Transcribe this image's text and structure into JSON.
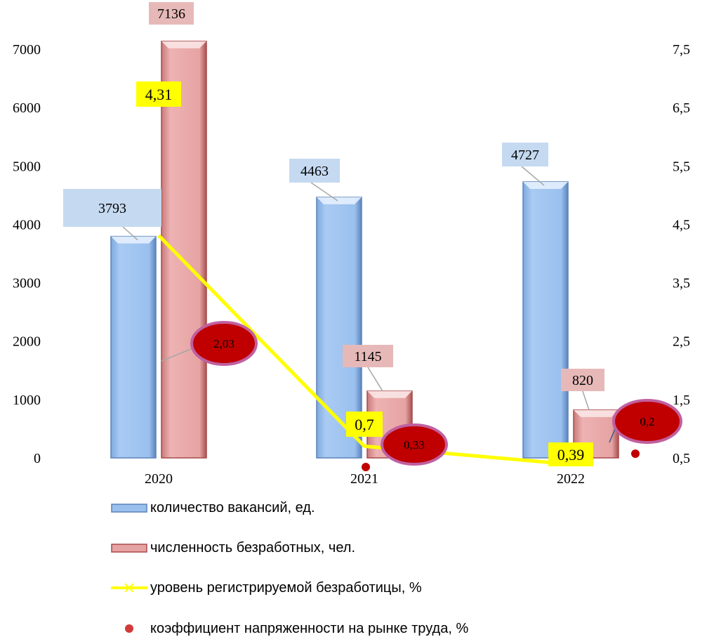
{
  "chart_data": {
    "type": "bar",
    "categories": [
      "2020",
      "2021",
      "2022"
    ],
    "y_left": {
      "ticks": [
        "0",
        "1000",
        "2000",
        "3000",
        "4000",
        "5000",
        "6000",
        "7000"
      ],
      "lim": [
        0,
        7000
      ]
    },
    "y_right": {
      "ticks": [
        "0,5",
        "1,5",
        "2,5",
        "3,5",
        "4,5",
        "5,5",
        "6,5",
        "7,5"
      ],
      "lim": [
        0.5,
        7.5
      ]
    },
    "series": [
      {
        "name": "количество вакансий, ед.",
        "kind": "bar",
        "axis": "left",
        "color": "#9ac0ee",
        "values": [
          3793,
          4463,
          4727
        ],
        "labels": [
          "3793",
          "4463",
          "4727"
        ]
      },
      {
        "name": "численность безработных, чел.",
        "kind": "bar",
        "axis": "left",
        "color": "#e6a3a3",
        "values": [
          7136,
          1145,
          820
        ],
        "labels": [
          "7136",
          "1145",
          "820"
        ]
      },
      {
        "name": "уровень регистрируемой безработицы, %",
        "kind": "line",
        "axis": "right",
        "color": "#ffff00",
        "values": [
          4.31,
          0.7,
          0.39
        ],
        "labels": [
          "4,31",
          "0,7",
          "0,39"
        ]
      },
      {
        "name": "коэффициент напряженности на рынке труда, %",
        "kind": "scatter",
        "axis": "right",
        "color": "#c00000",
        "values": [
          2.03,
          0.33,
          0.2
        ],
        "labels": [
          "2,03",
          "0,33",
          "0,2"
        ]
      }
    ],
    "legend_position": "bottom",
    "grid": false
  }
}
